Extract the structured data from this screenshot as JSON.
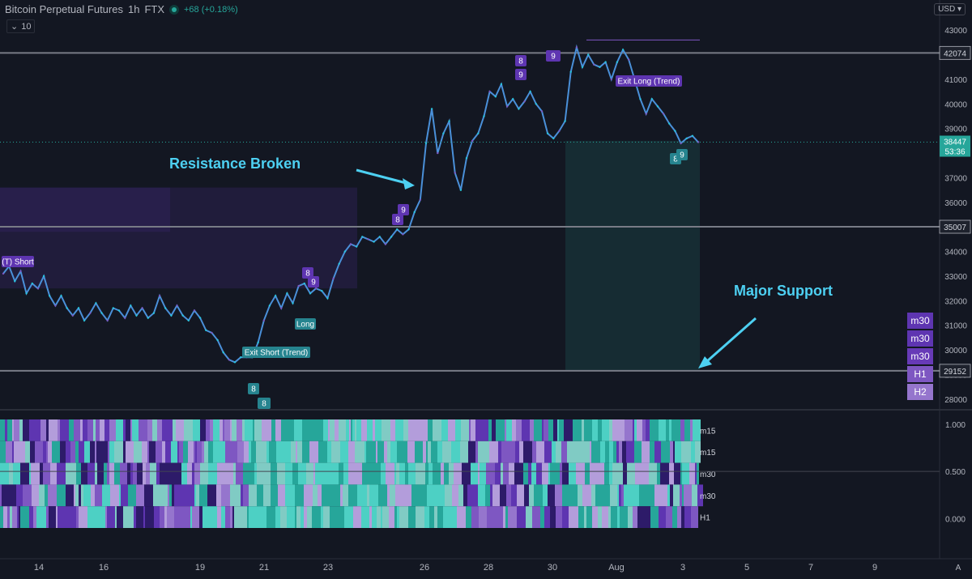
{
  "header": {
    "symbol": "Bitcoin Perpetual Futures",
    "interval": "1h",
    "exchange": "FTX",
    "change": "+68 (+0.18%)",
    "indicator_length": "10",
    "currency": "USD"
  },
  "annotations": {
    "resistance": "Resistance Broken",
    "support": "Major Support"
  },
  "timeframe_stack": [
    "m30",
    "m30",
    "m30",
    "H1",
    "H2"
  ],
  "colors": {
    "background": "#131722",
    "teal": "#26a69a",
    "purple": "#5e35b1",
    "line_candle": "#4a90d9",
    "annotation": "#4dd0f2",
    "level_line": "#787b86"
  },
  "chart_data": [
    {
      "type": "line",
      "title": "",
      "x_ticks": [
        "14",
        "16",
        "19",
        "21",
        "23",
        "26",
        "28",
        "30",
        "Aug",
        "3",
        "5",
        "7",
        "9"
      ],
      "ylim": [
        27700,
        43500
      ],
      "y_ticks": [
        28000,
        29000,
        30000,
        31000,
        32000,
        33000,
        34000,
        35000,
        36000,
        37000,
        38000,
        39000,
        40000,
        41000,
        42000,
        43000
      ],
      "series": [
        {
          "values": [
            33100,
            33400,
            32800,
            33200,
            32300,
            32700,
            32500,
            33000,
            32200,
            31800,
            32200,
            31700,
            31400,
            31700,
            31200,
            31500,
            31900,
            31500,
            31200,
            31700,
            31600,
            31300,
            31800,
            31400,
            31700,
            31300,
            31500,
            32200,
            31700,
            31400,
            31800,
            31400,
            31200,
            31600,
            31300,
            30800,
            30700,
            30400,
            29900,
            29600,
            29500,
            29700,
            29700,
            29700,
            30300,
            31200,
            31800,
            32200,
            31700,
            32300,
            31900,
            32600,
            32700,
            32300,
            32500,
            32400,
            32100,
            32900,
            33500,
            34000,
            34300,
            34200,
            34600,
            34500,
            34400,
            34600,
            34300,
            34600,
            34900,
            34700,
            34900,
            35600,
            36100,
            38400,
            39800,
            38000,
            38800,
            39300,
            37200,
            36500,
            37800,
            38500,
            38800,
            39500,
            40500,
            40300,
            40800,
            39900,
            40200,
            39800,
            40100,
            40500,
            40000,
            39700,
            38800,
            38600,
            38900,
            39300,
            41300,
            42300,
            41500,
            42000,
            41600,
            41500,
            41700,
            41000,
            41700,
            42200,
            41800,
            41000,
            40200,
            39600,
            40200,
            39900,
            39600,
            39200,
            38900,
            38400,
            38600,
            38700,
            38447
          ]
        }
      ],
      "horizontal_levels": [
        42074,
        35007,
        29152
      ],
      "current_price": "38447",
      "countdown": "53:36",
      "signal_labels": [
        "(T) Short",
        "8",
        "9",
        "Long",
        "Exit Short (Trend)",
        "8",
        "9",
        "8",
        "9",
        "9",
        "Exit Long (Trend)",
        "8",
        "9",
        "8",
        "8"
      ]
    },
    {
      "type": "heatmap",
      "title": "",
      "ylim": [
        -0.1,
        1.05
      ],
      "y_ticks": [
        "1.000",
        "0.500",
        "0.000"
      ],
      "rows": [
        "m15",
        "m15",
        "m30",
        "m30",
        "H1"
      ]
    }
  ]
}
